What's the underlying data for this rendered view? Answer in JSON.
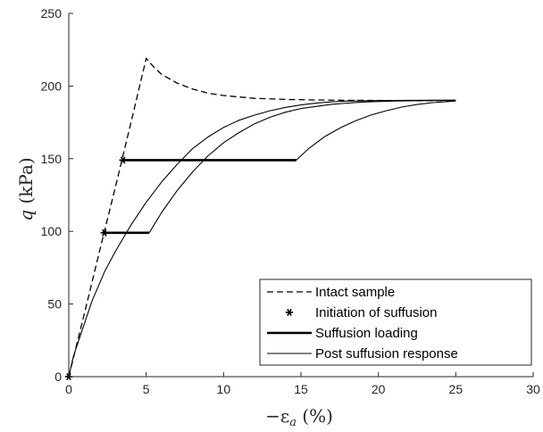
{
  "chart_data": {
    "type": "line",
    "xlabel": "−ε_a (%)",
    "ylabel": "q (kPa)",
    "xlim": [
      0,
      30
    ],
    "ylim": [
      0,
      250
    ],
    "x_ticks": [
      0,
      5,
      10,
      15,
      20,
      25,
      30
    ],
    "y_ticks": [
      0,
      50,
      100,
      150,
      200,
      250
    ],
    "grid": false,
    "legend_position": "bottom-right",
    "series": [
      {
        "name": "Intact sample",
        "style": "dashed",
        "color": "#000000",
        "x": [
          0,
          1,
          2,
          3,
          4,
          5.0,
          5.5,
          6,
          7,
          8,
          9,
          10,
          12,
          14,
          16,
          18,
          20,
          22,
          25
        ],
        "y": [
          0,
          43,
          87,
          130,
          174,
          219,
          213,
          208,
          202,
          198,
          195,
          193.5,
          191.5,
          190.8,
          190.4,
          190.2,
          190.1,
          190,
          190
        ]
      },
      {
        "name": "Initiation of suffusion",
        "style": "marker",
        "color": "#000000",
        "x": [
          0,
          2.3,
          3.5
        ],
        "y": [
          0,
          99,
          149
        ]
      },
      {
        "name": "Suffusion loading",
        "style": "thick",
        "color": "#000000",
        "segments": [
          {
            "x": [
              2.3,
              5.2
            ],
            "y": [
              99,
              99
            ]
          },
          {
            "x": [
              3.5,
              14.7
            ],
            "y": [
              149,
              149
            ]
          }
        ]
      },
      {
        "name": "Post suffusion response",
        "style": "thin",
        "color": "#000000",
        "segments": [
          {
            "x": [
              0,
              0.3,
              0.8,
              1.5,
              2.3,
              3,
              4,
              5,
              6,
              7,
              8,
              9,
              10,
              11,
              12,
              13,
              14,
              15,
              16,
              17,
              18,
              20,
              22,
              25
            ],
            "y": [
              0,
              14,
              30,
              52,
              72,
              86,
              104,
              120,
              134,
              146,
              157,
              165,
              171.5,
              176.5,
              180,
              183,
              185.3,
              187,
              188.3,
              189.1,
              189.6,
              190,
              190.2,
              190.3
            ]
          },
          {
            "x": [
              5.2,
              6,
              7,
              8,
              9,
              10,
              11,
              12,
              13,
              14,
              15,
              17,
              19,
              21,
              23,
              25
            ],
            "y": [
              99,
              113,
              128,
              141,
              152,
              161,
              168,
              174,
              178.5,
              182,
              184.5,
              187.5,
              189,
              189.7,
              190,
              190.2
            ]
          },
          {
            "x": [
              14.7,
              15.5,
              16.5,
              17.5,
              18.5,
              19.5,
              20.5,
              21.5,
              22.5,
              23.5,
              25
            ],
            "y": [
              149,
              157,
              165,
              171,
              176,
              180,
              183,
              185.5,
              187.3,
              188.6,
              189.7
            ]
          }
        ]
      }
    ]
  }
}
